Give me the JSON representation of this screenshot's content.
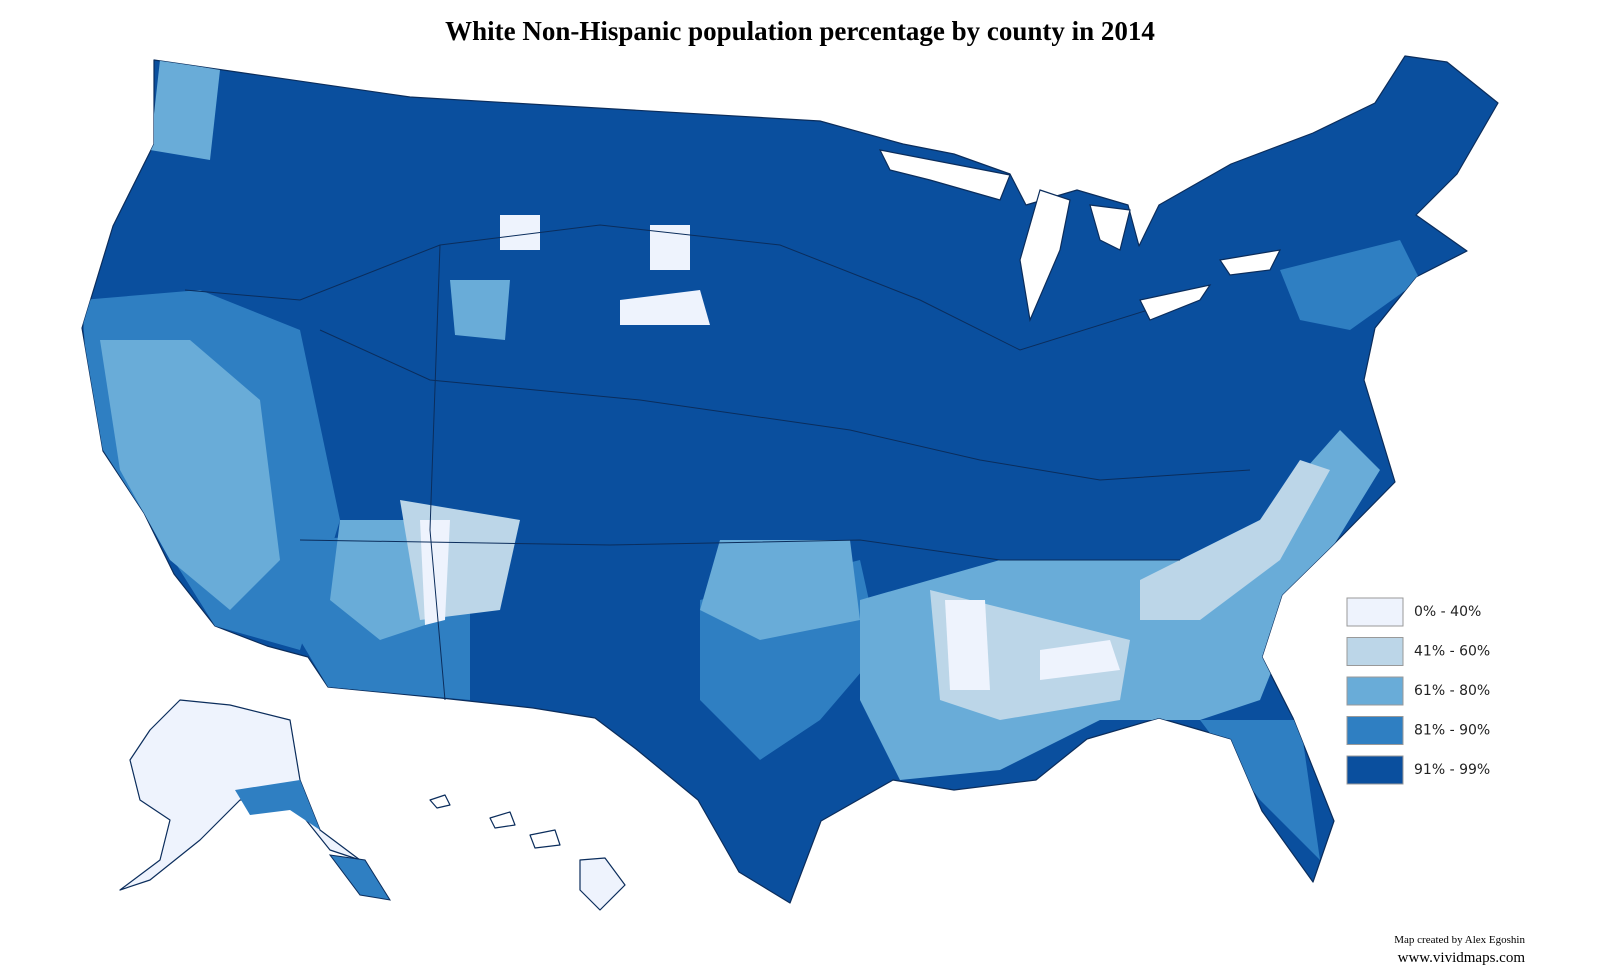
{
  "title": "White Non-Hispanic population percentage by county in 2014",
  "legend": [
    {
      "label": "0% - 40%",
      "color": "#eef3fd"
    },
    {
      "label": "41% - 60%",
      "color": "#bcd6e8"
    },
    {
      "label": "61% - 80%",
      "color": "#69acd8"
    },
    {
      "label": "81% - 90%",
      "color": "#2f7fc2"
    },
    {
      "label": "91% - 99%",
      "color": "#0a4f9e"
    }
  ],
  "credit": "Map created by Alex Egoshin",
  "website": "www.vividmaps.com"
}
